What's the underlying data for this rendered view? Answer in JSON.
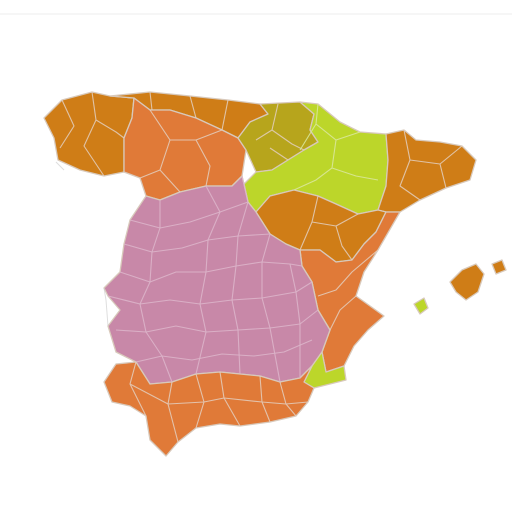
{
  "map": {
    "subject": "Spain",
    "colors": {
      "background": "#ffffff",
      "orange": "#e07a38",
      "dark_orange": "#cf7d17",
      "olive": "#b7a51c",
      "lime": "#bcd62a",
      "pink": "#c888a8"
    },
    "regions": [
      {
        "id": "galicia",
        "color": "dark_orange"
      },
      {
        "id": "asturias-cantabria",
        "color": "dark_orange"
      },
      {
        "id": "castilla-leon-west",
        "color": "orange"
      },
      {
        "id": "basque-navarre",
        "color": "olive"
      },
      {
        "id": "aragon",
        "color": "lime"
      },
      {
        "id": "catalonia",
        "color": "dark_orange"
      },
      {
        "id": "castilla-leon-east",
        "color": "dark_orange"
      },
      {
        "id": "valencia",
        "color": "orange"
      },
      {
        "id": "central-plateau",
        "color": "pink"
      },
      {
        "id": "murcia",
        "color": "lime"
      },
      {
        "id": "andalusia",
        "color": "orange"
      },
      {
        "id": "mallorca-menorca",
        "color": "dark_orange"
      },
      {
        "id": "ibiza",
        "color": "lime"
      }
    ]
  }
}
